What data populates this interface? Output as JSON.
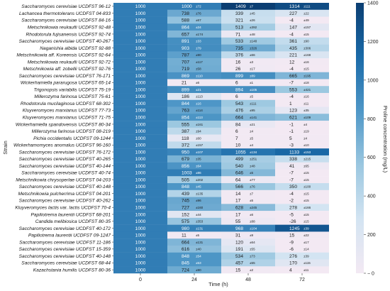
{
  "chart_data": {
    "type": "heatmap",
    "xlabel": "Time (h)",
    "ylabel": "Strain",
    "colorbar_label": "Proline concentration (mg/L)",
    "x": [
      "0",
      "24",
      "48",
      "72"
    ],
    "colorbar_ticks": [
      "0",
      "200",
      "400",
      "600",
      "800",
      "1000",
      "1200",
      "1400"
    ],
    "vmin": 0,
    "vmax": 1400,
    "colormap": [
      "#f3e9f3",
      "#d3e4f2",
      "#9bc7e0",
      "#4f97c7",
      "#1a6aa8",
      "#0b3e72"
    ],
    "rows": [
      {
        "strain": "Saccharomyces cerevisiae UCDFST 96-12",
        "v": [
          "1000",
          "1000",
          "1409",
          "1314"
        ],
        "sd": [
          "",
          "72",
          "7",
          "111"
        ]
      },
      {
        "strain": "Lachancea thermotolerans UCDFST 04-833",
        "v": [
          "1000",
          "738",
          "339",
          "227"
        ],
        "sd": [
          "",
          "76",
          "45",
          "22"
        ]
      },
      {
        "strain": "Saccharomyces cerevisiae UCDFST 84-16",
        "v": [
          "1000",
          "588",
          "321",
          "-4"
        ],
        "sd": [
          "",
          "67",
          "26",
          "49"
        ]
      },
      {
        "strain": "Metschnikowia reukaufii UCDFST 92-48",
        "v": [
          "1000",
          "864",
          "513",
          "147"
        ],
        "sd": [
          "",
          "24",
          "392",
          "157"
        ]
      },
      {
        "strain": "Rhodotorula fujisanensis UCDFST 92-74",
        "v": [
          "1000",
          "657",
          "71",
          "-4"
        ],
        "sd": [
          "",
          "174",
          "48",
          "15"
        ]
      },
      {
        "strain": "Saccharomyces cerevisiae UCDFST 40-267",
        "v": [
          "1000",
          "891",
          "533",
          "361"
        ],
        "sd": [
          "",
          "33",
          "148",
          "90"
        ]
      },
      {
        "strain": "Naganishia albida UCDFST 92-88",
        "v": [
          "1000",
          "903",
          "735",
          "435"
        ],
        "sd": [
          "",
          "79",
          "326",
          "306"
        ]
      },
      {
        "strain": "Metschnikowia aff. Koreensis UCDFST 92-64",
        "v": [
          "1000",
          "787",
          "376",
          "221"
        ],
        "sd": [
          "",
          "90",
          "66",
          "168"
        ]
      },
      {
        "strain": "Metschnikowia reukaufii UCDFST 92-72",
        "v": [
          "1000",
          "707",
          "16",
          "12"
        ],
        "sd": [
          "",
          "117",
          "3",
          "16"
        ]
      },
      {
        "strain": "Metschnikowia aff. zobellii UCDFST 92-76",
        "v": [
          "1000",
          "719",
          "26",
          "-4"
        ],
        "sd": [
          "",
          "58",
          "17",
          "15"
        ]
      },
      {
        "strain": "Saccharomyces cerevisiae UCDFST 76-171",
        "v": [
          "1000",
          "869",
          "899",
          "665"
        ],
        "sd": [
          "",
          "110",
          "89",
          "195"
        ]
      },
      {
        "strain": "Wickerhamiella pararugosa UCDFST 65-14",
        "v": [
          "1000",
          "21",
          "6",
          "-7"
        ],
        "sd": [
          "",
          "6",
          "1",
          "18"
        ]
      },
      {
        "strain": "Trigonopsis variabilis UCDFST 75-19",
        "v": [
          "1000",
          "899",
          "894",
          "553"
        ],
        "sd": [
          "",
          "21",
          "105",
          "421"
        ]
      },
      {
        "strain": "Millerozyma farinosa UCDFST 75-61",
        "v": [
          "1000",
          "186",
          "6",
          "-4"
        ],
        "sd": [
          "",
          "113",
          "5",
          "16"
        ]
      },
      {
        "strain": "Rhodotorula mucilaginosa UCDFST 68-302",
        "v": [
          "1000",
          "844",
          "543",
          "1"
        ],
        "sd": [
          "",
          "16",
          "111",
          "11"
        ]
      },
      {
        "strain": "Kluyveromyces marxianus UCDFST 77-73",
        "v": [
          "1000",
          "763",
          "476",
          "123"
        ],
        "sd": [
          "",
          "114",
          "95",
          "35"
        ]
      },
      {
        "strain": "Kluyveromyces marxianus UCDFST 71-75",
        "v": [
          "1000",
          "854",
          "664",
          "621"
        ],
        "sd": [
          "",
          "113",
          "141",
          "109"
        ]
      },
      {
        "strain": "Wickerhamiella spandovensis UCDFST 80-34",
        "v": [
          "1000",
          "555",
          "84",
          "-1"
        ],
        "sd": [
          "",
          "161",
          "21",
          "4"
        ]
      },
      {
        "strain": "Millerozyma farinosa UCDFST 08-219",
        "v": [
          "1000",
          "387",
          "6",
          "-1"
        ],
        "sd": [
          "",
          "94",
          "4",
          "19"
        ]
      },
      {
        "strain": "Pichia occidentalis UCDFST 09-1244",
        "v": [
          "1000",
          "118",
          "7",
          "5"
        ],
        "sd": [
          "",
          "60",
          "5",
          "4"
        ]
      },
      {
        "strain": "Wickerhamomyces anomalus UCDFST 96-160",
        "v": [
          "1000",
          "372",
          "10",
          "-3"
        ],
        "sd": [
          "",
          "157",
          "4",
          "10"
        ]
      },
      {
        "strain": "Saccharomyces cerevisiae UCDFST 76-172",
        "v": [
          "1000",
          "950",
          "1055",
          "1133"
        ],
        "sd": [
          "",
          "107",
          "134",
          "153"
        ]
      },
      {
        "strain": "Saccharomyces cerevisiae UCDFST 40-265",
        "v": [
          "1000",
          "679",
          "499",
          "338"
        ],
        "sd": [
          "",
          "35",
          "251",
          "215"
        ]
      },
      {
        "strain": "Saccharomyces cerevisiae UCDFST 40-144",
        "v": [
          "1000",
          "856",
          "540",
          "41"
        ],
        "sd": [
          "",
          "64",
          "48",
          "65"
        ]
      },
      {
        "strain": "Saccharomyces cerevisiae UCDFST 40-74",
        "v": [
          "1000",
          "1003",
          "646",
          "-7"
        ],
        "sd": [
          "",
          "86",
          "5",
          "15"
        ]
      },
      {
        "strain": "Metschnikowia chrysoperlae UCDFST 04-203",
        "v": [
          "1000",
          "505",
          "64",
          "-7"
        ],
        "sd": [
          "",
          "202",
          "77",
          "15"
        ]
      },
      {
        "strain": "Saccharomyces cerevisiae UCDFST 40-148",
        "v": [
          "1000",
          "848",
          "566",
          "350"
        ],
        "sd": [
          "",
          "45",
          "76",
          "100"
        ]
      },
      {
        "strain": "Metschnikowia pulcherrima UCDFST 04-201",
        "v": [
          "1000",
          "439",
          "14",
          "-4"
        ],
        "sd": [
          "",
          "135",
          "7",
          "15"
        ]
      },
      {
        "strain": "Saccharomyces cerevisiae UCDFST 40-262",
        "v": [
          "1000",
          "745",
          "17",
          "-2"
        ],
        "sd": [
          "",
          "96",
          "5",
          "15"
        ]
      },
      {
        "strain": "Kluyveromyces lactis var. lactis UCDFST 70-4",
        "v": [
          "1000",
          "727",
          "628",
          "278"
        ],
        "sd": [
          "",
          "160",
          "245",
          "166"
        ]
      },
      {
        "strain": "Papiliotrema laurentii UCDFST 68-201",
        "v": [
          "1000",
          "152",
          "17",
          "-5"
        ],
        "sd": [
          "",
          "44",
          "6",
          "15"
        ]
      },
      {
        "strain": "Candida melibiosica UCDFST 80-35",
        "v": [
          "1000",
          "575",
          "55",
          "-26"
        ],
        "sd": [
          "",
          "353",
          "88",
          "15"
        ]
      },
      {
        "strain": "Saccharomyces cerevisiae UCDFST 40-172",
        "v": [
          "1000",
          "980",
          "968",
          "1245"
        ],
        "sd": [
          "",
          "131",
          "104",
          "39"
        ]
      },
      {
        "strain": "Papiliotrema laurentii UCDFST 09-1247",
        "v": [
          "1000",
          "11",
          "31",
          "15"
        ],
        "sd": [
          "",
          "5",
          "9",
          "22"
        ]
      },
      {
        "strain": "Saccharomyces cerevisiae UCDFST 11-186",
        "v": [
          "1000",
          "664",
          "120",
          "-9"
        ],
        "sd": [
          "",
          "131",
          "64",
          "17"
        ]
      },
      {
        "strain": "Saccharomyces cerevisiae UCDFST 15-359",
        "v": [
          "1000",
          "616",
          "191",
          "-6"
        ],
        "sd": [
          "",
          "40",
          "55",
          "14"
        ]
      },
      {
        "strain": "Saccharomyces cerevisiae UCDFST 40-148",
        "v": [
          "1000",
          "848",
          "534",
          "276"
        ],
        "sd": [
          "",
          "54",
          "73",
          "39"
        ]
      },
      {
        "strain": "Saccharomyces cerevisiae UCDFST 68-44",
        "v": [
          "1000",
          "845",
          "457",
          "170"
        ],
        "sd": [
          "",
          "53",
          "55",
          "115"
        ]
      },
      {
        "strain": "Kazachstania humilis UCDFST 80-36",
        "v": [
          "1000",
          "724",
          "15",
          "4"
        ],
        "sd": [
          "",
          "90",
          "2",
          "11"
        ]
      }
    ]
  }
}
